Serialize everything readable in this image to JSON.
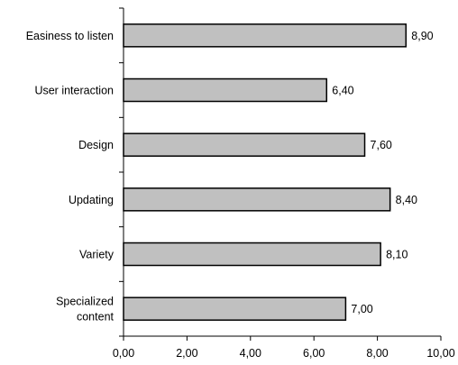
{
  "chart_data": {
    "type": "bar",
    "orientation": "horizontal",
    "categories": [
      [
        "Easiness to listen"
      ],
      [
        "User interaction"
      ],
      [
        "Design"
      ],
      [
        "Updating"
      ],
      [
        "Variety"
      ],
      [
        "Specialized",
        "content"
      ]
    ],
    "values": [
      8.9,
      6.4,
      7.6,
      8.4,
      8.1,
      7.0
    ],
    "value_labels": [
      "8,90",
      "6,40",
      "7,60",
      "8,40",
      "8,10",
      "7,00"
    ],
    "xlim": [
      0,
      10
    ],
    "x_ticks": [
      0,
      2,
      4,
      6,
      8,
      10
    ],
    "x_tick_labels": [
      "0,00",
      "2,00",
      "4,00",
      "6,00",
      "8,00",
      "10,00"
    ],
    "title": "",
    "xlabel": "",
    "ylabel": "",
    "grid": false,
    "legend": "none",
    "bar_color": "#c0c0c0",
    "bar_edge_color": "#000000"
  }
}
